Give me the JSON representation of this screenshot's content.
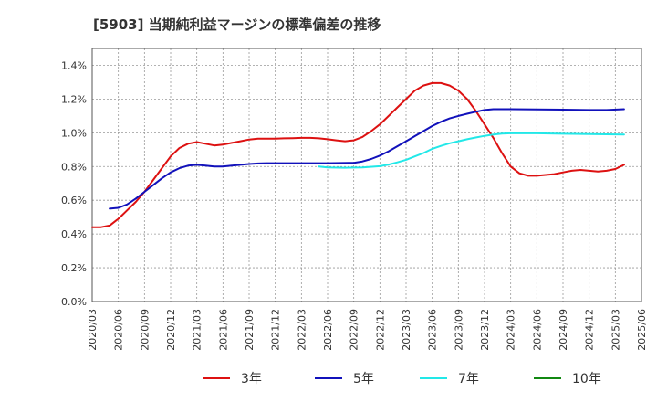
{
  "chart_data": {
    "type": "line",
    "title": "[5903]  当期純利益マージンの標準偏差の推移",
    "xlabel": "",
    "ylabel": "",
    "ylim": [
      0,
      1.5
    ],
    "yticks": [
      "0.0%",
      "0.2%",
      "0.4%",
      "0.6%",
      "0.8%",
      "1.0%",
      "1.2%",
      "1.4%"
    ],
    "xticks": [
      "2020/03",
      "2020/06",
      "2020/09",
      "2020/12",
      "2021/03",
      "2021/06",
      "2021/09",
      "2021/12",
      "2022/03",
      "2022/06",
      "2022/09",
      "2022/12",
      "2023/03",
      "2023/06",
      "2023/09",
      "2023/12",
      "2024/03",
      "2024/06",
      "2024/09",
      "2024/12",
      "2025/03",
      "2025/06"
    ],
    "grid": true,
    "legend_position": "bottom",
    "series": [
      {
        "name": "3年",
        "color": "#dd1111",
        "points": [
          [
            "2020/03",
            0.44
          ],
          [
            "2020/04",
            0.44
          ],
          [
            "2020/05",
            0.45
          ],
          [
            "2020/06",
            0.49
          ],
          [
            "2020/07",
            0.54
          ],
          [
            "2020/08",
            0.59
          ],
          [
            "2020/09",
            0.65
          ],
          [
            "2020/10",
            0.72
          ],
          [
            "2020/11",
            0.79
          ],
          [
            "2020/12",
            0.86
          ],
          [
            "2021/01",
            0.91
          ],
          [
            "2021/02",
            0.935
          ],
          [
            "2021/03",
            0.945
          ],
          [
            "2021/04",
            0.935
          ],
          [
            "2021/05",
            0.925
          ],
          [
            "2021/06",
            0.93
          ],
          [
            "2021/07",
            0.94
          ],
          [
            "2021/08",
            0.95
          ],
          [
            "2021/09",
            0.96
          ],
          [
            "2021/10",
            0.965
          ],
          [
            "2021/11",
            0.965
          ],
          [
            "2021/12",
            0.965
          ],
          [
            "2022/01",
            0.967
          ],
          [
            "2022/02",
            0.968
          ],
          [
            "2022/03",
            0.97
          ],
          [
            "2022/04",
            0.97
          ],
          [
            "2022/05",
            0.967
          ],
          [
            "2022/06",
            0.962
          ],
          [
            "2022/07",
            0.955
          ],
          [
            "2022/08",
            0.95
          ],
          [
            "2022/09",
            0.955
          ],
          [
            "2022/10",
            0.975
          ],
          [
            "2022/11",
            1.01
          ],
          [
            "2022/12",
            1.05
          ],
          [
            "2023/01",
            1.1
          ],
          [
            "2023/02",
            1.15
          ],
          [
            "2023/03",
            1.2
          ],
          [
            "2023/04",
            1.25
          ],
          [
            "2023/05",
            1.28
          ],
          [
            "2023/06",
            1.295
          ],
          [
            "2023/07",
            1.295
          ],
          [
            "2023/08",
            1.28
          ],
          [
            "2023/09",
            1.25
          ],
          [
            "2023/10",
            1.2
          ],
          [
            "2023/11",
            1.13
          ],
          [
            "2023/12",
            1.05
          ],
          [
            "2024/01",
            0.97
          ],
          [
            "2024/02",
            0.88
          ],
          [
            "2024/03",
            0.8
          ],
          [
            "2024/04",
            0.76
          ],
          [
            "2024/05",
            0.745
          ],
          [
            "2024/06",
            0.745
          ],
          [
            "2024/07",
            0.75
          ],
          [
            "2024/08",
            0.755
          ],
          [
            "2024/09",
            0.765
          ],
          [
            "2024/10",
            0.775
          ],
          [
            "2024/11",
            0.78
          ],
          [
            "2024/12",
            0.775
          ],
          [
            "2025/01",
            0.77
          ],
          [
            "2025/02",
            0.775
          ],
          [
            "2025/03",
            0.785
          ],
          [
            "2025/04",
            0.81
          ]
        ]
      },
      {
        "name": "5年",
        "color": "#1111bb",
        "points": [
          [
            "2020/05",
            0.55
          ],
          [
            "2020/06",
            0.555
          ],
          [
            "2020/07",
            0.575
          ],
          [
            "2020/08",
            0.61
          ],
          [
            "2020/09",
            0.65
          ],
          [
            "2020/10",
            0.69
          ],
          [
            "2020/11",
            0.73
          ],
          [
            "2020/12",
            0.765
          ],
          [
            "2021/01",
            0.79
          ],
          [
            "2021/02",
            0.805
          ],
          [
            "2021/03",
            0.81
          ],
          [
            "2021/04",
            0.805
          ],
          [
            "2021/05",
            0.8
          ],
          [
            "2021/06",
            0.8
          ],
          [
            "2021/07",
            0.805
          ],
          [
            "2021/08",
            0.81
          ],
          [
            "2021/09",
            0.815
          ],
          [
            "2021/10",
            0.818
          ],
          [
            "2021/11",
            0.82
          ],
          [
            "2021/12",
            0.82
          ],
          [
            "2022/03",
            0.82
          ],
          [
            "2022/06",
            0.82
          ],
          [
            "2022/09",
            0.822
          ],
          [
            "2022/10",
            0.83
          ],
          [
            "2022/11",
            0.845
          ],
          [
            "2022/12",
            0.865
          ],
          [
            "2023/01",
            0.89
          ],
          [
            "2023/02",
            0.92
          ],
          [
            "2023/03",
            0.95
          ],
          [
            "2023/04",
            0.98
          ],
          [
            "2023/05",
            1.01
          ],
          [
            "2023/06",
            1.04
          ],
          [
            "2023/07",
            1.065
          ],
          [
            "2023/08",
            1.085
          ],
          [
            "2023/09",
            1.1
          ],
          [
            "2023/10",
            1.113
          ],
          [
            "2023/11",
            1.125
          ],
          [
            "2023/12",
            1.135
          ],
          [
            "2024/01",
            1.14
          ],
          [
            "2024/03",
            1.14
          ],
          [
            "2024/06",
            1.138
          ],
          [
            "2024/09",
            1.137
          ],
          [
            "2024/12",
            1.135
          ],
          [
            "2025/02",
            1.135
          ],
          [
            "2025/04",
            1.14
          ]
        ]
      },
      {
        "name": "7年",
        "color": "#22e8e8",
        "points": [
          [
            "2022/05",
            0.8
          ],
          [
            "2022/06",
            0.795
          ],
          [
            "2022/08",
            0.793
          ],
          [
            "2022/10",
            0.795
          ],
          [
            "2022/12",
            0.802
          ],
          [
            "2023/01",
            0.812
          ],
          [
            "2023/02",
            0.825
          ],
          [
            "2023/03",
            0.84
          ],
          [
            "2023/04",
            0.86
          ],
          [
            "2023/05",
            0.88
          ],
          [
            "2023/06",
            0.905
          ],
          [
            "2023/07",
            0.922
          ],
          [
            "2023/08",
            0.938
          ],
          [
            "2023/09",
            0.95
          ],
          [
            "2023/10",
            0.962
          ],
          [
            "2023/11",
            0.972
          ],
          [
            "2023/12",
            0.982
          ],
          [
            "2024/01",
            0.99
          ],
          [
            "2024/02",
            0.995
          ],
          [
            "2024/03",
            0.997
          ],
          [
            "2024/06",
            0.997
          ],
          [
            "2024/09",
            0.994
          ],
          [
            "2024/12",
            0.992
          ],
          [
            "2025/04",
            0.99
          ]
        ]
      },
      {
        "name": "10年",
        "color": "#118811",
        "points": []
      }
    ]
  }
}
